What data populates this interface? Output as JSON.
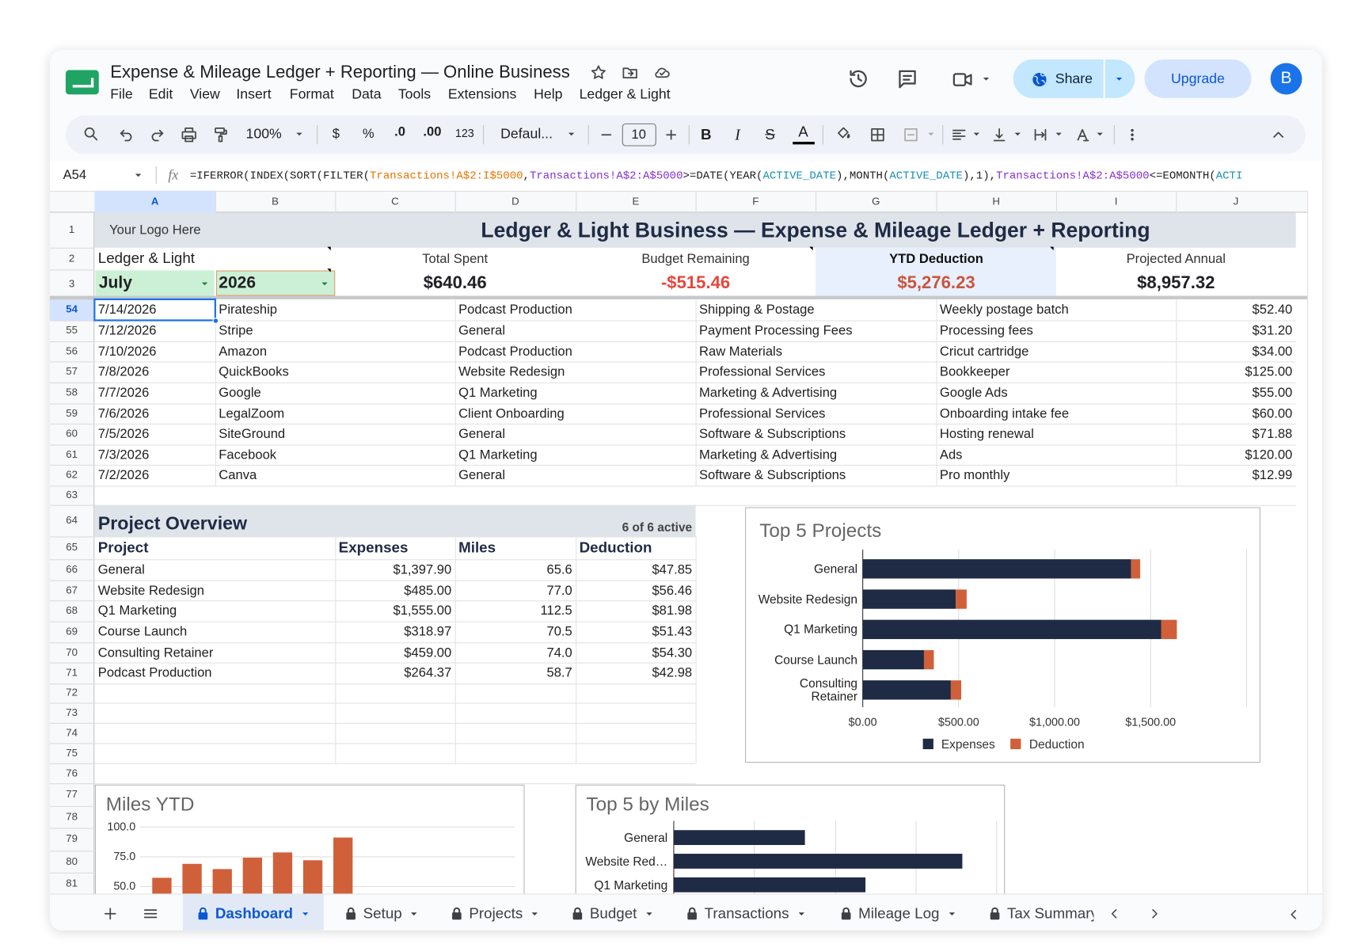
{
  "header": {
    "title": "Expense & Mileage Ledger + Reporting — Online Business",
    "menu": [
      "File",
      "Edit",
      "View",
      "Insert",
      "Format",
      "Data",
      "Tools",
      "Extensions",
      "Help",
      "Ledger & Light"
    ],
    "share": "Share",
    "upgrade": "Upgrade",
    "avatar": "B"
  },
  "toolbar": {
    "zoom": "100%",
    "currency": "$",
    "percent": "%",
    "decrease_decimals": ".0",
    "increase_decimals": ".00",
    "number_format": "123",
    "font": "Defaul...",
    "font_size": "10",
    "bold": "B",
    "italic": "I",
    "strikethrough": "S",
    "text_color": "A"
  },
  "formula_bar": {
    "cell": "A54",
    "fx": "fx",
    "segments": [
      {
        "text": "=IFERROR(INDEX(SORT(FILTER(",
        "color": "#202124"
      },
      {
        "text": "Transactions!A$2:I$5000",
        "color": "#e37400"
      },
      {
        "text": ",",
        "color": "#202124"
      },
      {
        "text": "Transactions!A$2:A$5000",
        "color": "#8430ce"
      },
      {
        "text": ">=DATE(YEAR(",
        "color": "#202124"
      },
      {
        "text": "ACTIVE_DATE",
        "color": "#1a8fb8"
      },
      {
        "text": "),MONTH(",
        "color": "#202124"
      },
      {
        "text": "ACTIVE_DATE",
        "color": "#1a8fb8"
      },
      {
        "text": "),1),",
        "color": "#202124"
      },
      {
        "text": "Transactions!A$2:A$5000",
        "color": "#8430ce"
      },
      {
        "text": "<=EOMONTH(",
        "color": "#202124"
      },
      {
        "text": "ACTI",
        "color": "#1a8fb8"
      }
    ]
  },
  "grid": {
    "columns": [
      "A",
      "B",
      "C",
      "D",
      "E",
      "F",
      "G",
      "H",
      "I",
      "J"
    ],
    "rows": [
      1,
      2,
      3,
      54,
      55,
      56,
      57,
      58,
      59,
      60,
      61,
      62,
      63,
      64,
      65,
      66,
      67,
      68,
      69,
      70,
      71,
      72,
      73,
      74,
      75,
      76,
      77,
      78,
      79,
      80,
      81
    ]
  },
  "dashboard": {
    "logo": "Your Logo Here",
    "title": "Ledger & Light Business — Expense & Mileage Ledger + Reporting",
    "business": "Ledger & Light",
    "month": "July",
    "year": "2026",
    "kpis": [
      {
        "label": "Total Spent",
        "value": "$640.46",
        "color": "#202124"
      },
      {
        "label": "Budget Remaining",
        "value": "-$515.46",
        "color": "#e8453c"
      },
      {
        "label": "YTD Deduction",
        "value": "$5,276.23",
        "color": "#c8553d"
      },
      {
        "label": "Projected Annual",
        "value": "$8,957.32",
        "color": "#202124"
      }
    ]
  },
  "transactions": {
    "rows": [
      [
        "7/14/2026",
        "Pirateship",
        "Podcast Production",
        "Shipping & Postage",
        "Weekly postage batch",
        "$52.40"
      ],
      [
        "7/12/2026",
        "Stripe",
        "General",
        "Payment Processing Fees",
        "Processing fees",
        "$31.20"
      ],
      [
        "7/10/2026",
        "Amazon",
        "Podcast Production",
        "Raw Materials",
        "Cricut cartridge",
        "$34.00"
      ],
      [
        "7/8/2026",
        "QuickBooks",
        "Website Redesign",
        "Professional Services",
        "Bookkeeper",
        "$125.00"
      ],
      [
        "7/7/2026",
        "Google",
        "Q1 Marketing",
        "Marketing & Advertising",
        "Google Ads",
        "$55.00"
      ],
      [
        "7/6/2026",
        "LegalZoom",
        "Client Onboarding",
        "Professional Services",
        "Onboarding intake fee",
        "$60.00"
      ],
      [
        "7/5/2026",
        "SiteGround",
        "General",
        "Software & Subscriptions",
        "Hosting renewal",
        "$71.88"
      ],
      [
        "7/3/2026",
        "Facebook",
        "Q1 Marketing",
        "Marketing & Advertising",
        "Ads",
        "$120.00"
      ],
      [
        "7/2/2026",
        "Canva",
        "General",
        "Software & Subscriptions",
        "Pro monthly",
        "$12.99"
      ]
    ]
  },
  "projects": {
    "title": "Project Overview",
    "status": "6 of 6 active",
    "headers": [
      "Project",
      "Expenses",
      "Miles",
      "Deduction"
    ],
    "rows": [
      [
        "General",
        "$1,397.90",
        "65.6",
        "$47.85"
      ],
      [
        "Website Redesign",
        "$485.00",
        "77.0",
        "$56.46"
      ],
      [
        "Q1 Marketing",
        "$1,555.00",
        "112.5",
        "$81.98"
      ],
      [
        "Course Launch",
        "$318.97",
        "70.5",
        "$51.43"
      ],
      [
        "Consulting Retainer",
        "$459.00",
        "74.0",
        "$54.30"
      ],
      [
        "Podcast Production",
        "$264.37",
        "58.7",
        "$42.98"
      ]
    ]
  },
  "charts": [
    {
      "type": "bar",
      "orientation": "horizontal",
      "stacked": true,
      "title": "Top 5 Projects",
      "categories": [
        "General",
        "Website Redesign",
        "Q1 Marketing",
        "Course Launch",
        "Consulting Retainer"
      ],
      "series": [
        {
          "name": "Expenses",
          "color": "#1f2a44",
          "values": [
            1397.9,
            485,
            1555,
            318.97,
            459
          ]
        },
        {
          "name": "Deduction",
          "color": "#d0603a",
          "values": [
            47.85,
            56.46,
            81.98,
            51.43,
            54.3
          ]
        }
      ],
      "xlim": [
        0,
        2000
      ],
      "xticks": [
        {
          "value": 0,
          "label": "$0.00"
        },
        {
          "value": 500,
          "label": "$500.00"
        },
        {
          "value": 1000,
          "label": "$1,000.00"
        },
        {
          "value": 1500,
          "label": "$1,500.00"
        }
      ],
      "legend": "bottom"
    },
    {
      "type": "column",
      "title": "Miles YTD",
      "categories": [
        null,
        null,
        null,
        null,
        null,
        null,
        null
      ],
      "values": [
        57.4,
        69.1,
        64.7,
        74.3,
        78.7,
        72.1,
        91.2
      ],
      "color": "#d0603a",
      "ylim": [
        0,
        100
      ],
      "yticks": [
        {
          "value": 100,
          "label": "100.0"
        },
        {
          "value": 75,
          "label": "75.0"
        },
        {
          "value": 50,
          "label": "50.0"
        }
      ]
    },
    {
      "type": "bar",
      "orientation": "horizontal",
      "title": "Top 5 by Miles",
      "categories": [
        "General",
        "Website Red…",
        "Q1 Marketing"
      ],
      "values": [
        32.5,
        71.5,
        47.5
      ],
      "color": "#1f2a44",
      "xlim": [
        0,
        80
      ]
    }
  ],
  "tabs": {
    "items": [
      "Dashboard",
      "Setup",
      "Projects",
      "Budget",
      "Transactions",
      "Mileage Log",
      "Tax Summary"
    ],
    "active": 0
  }
}
